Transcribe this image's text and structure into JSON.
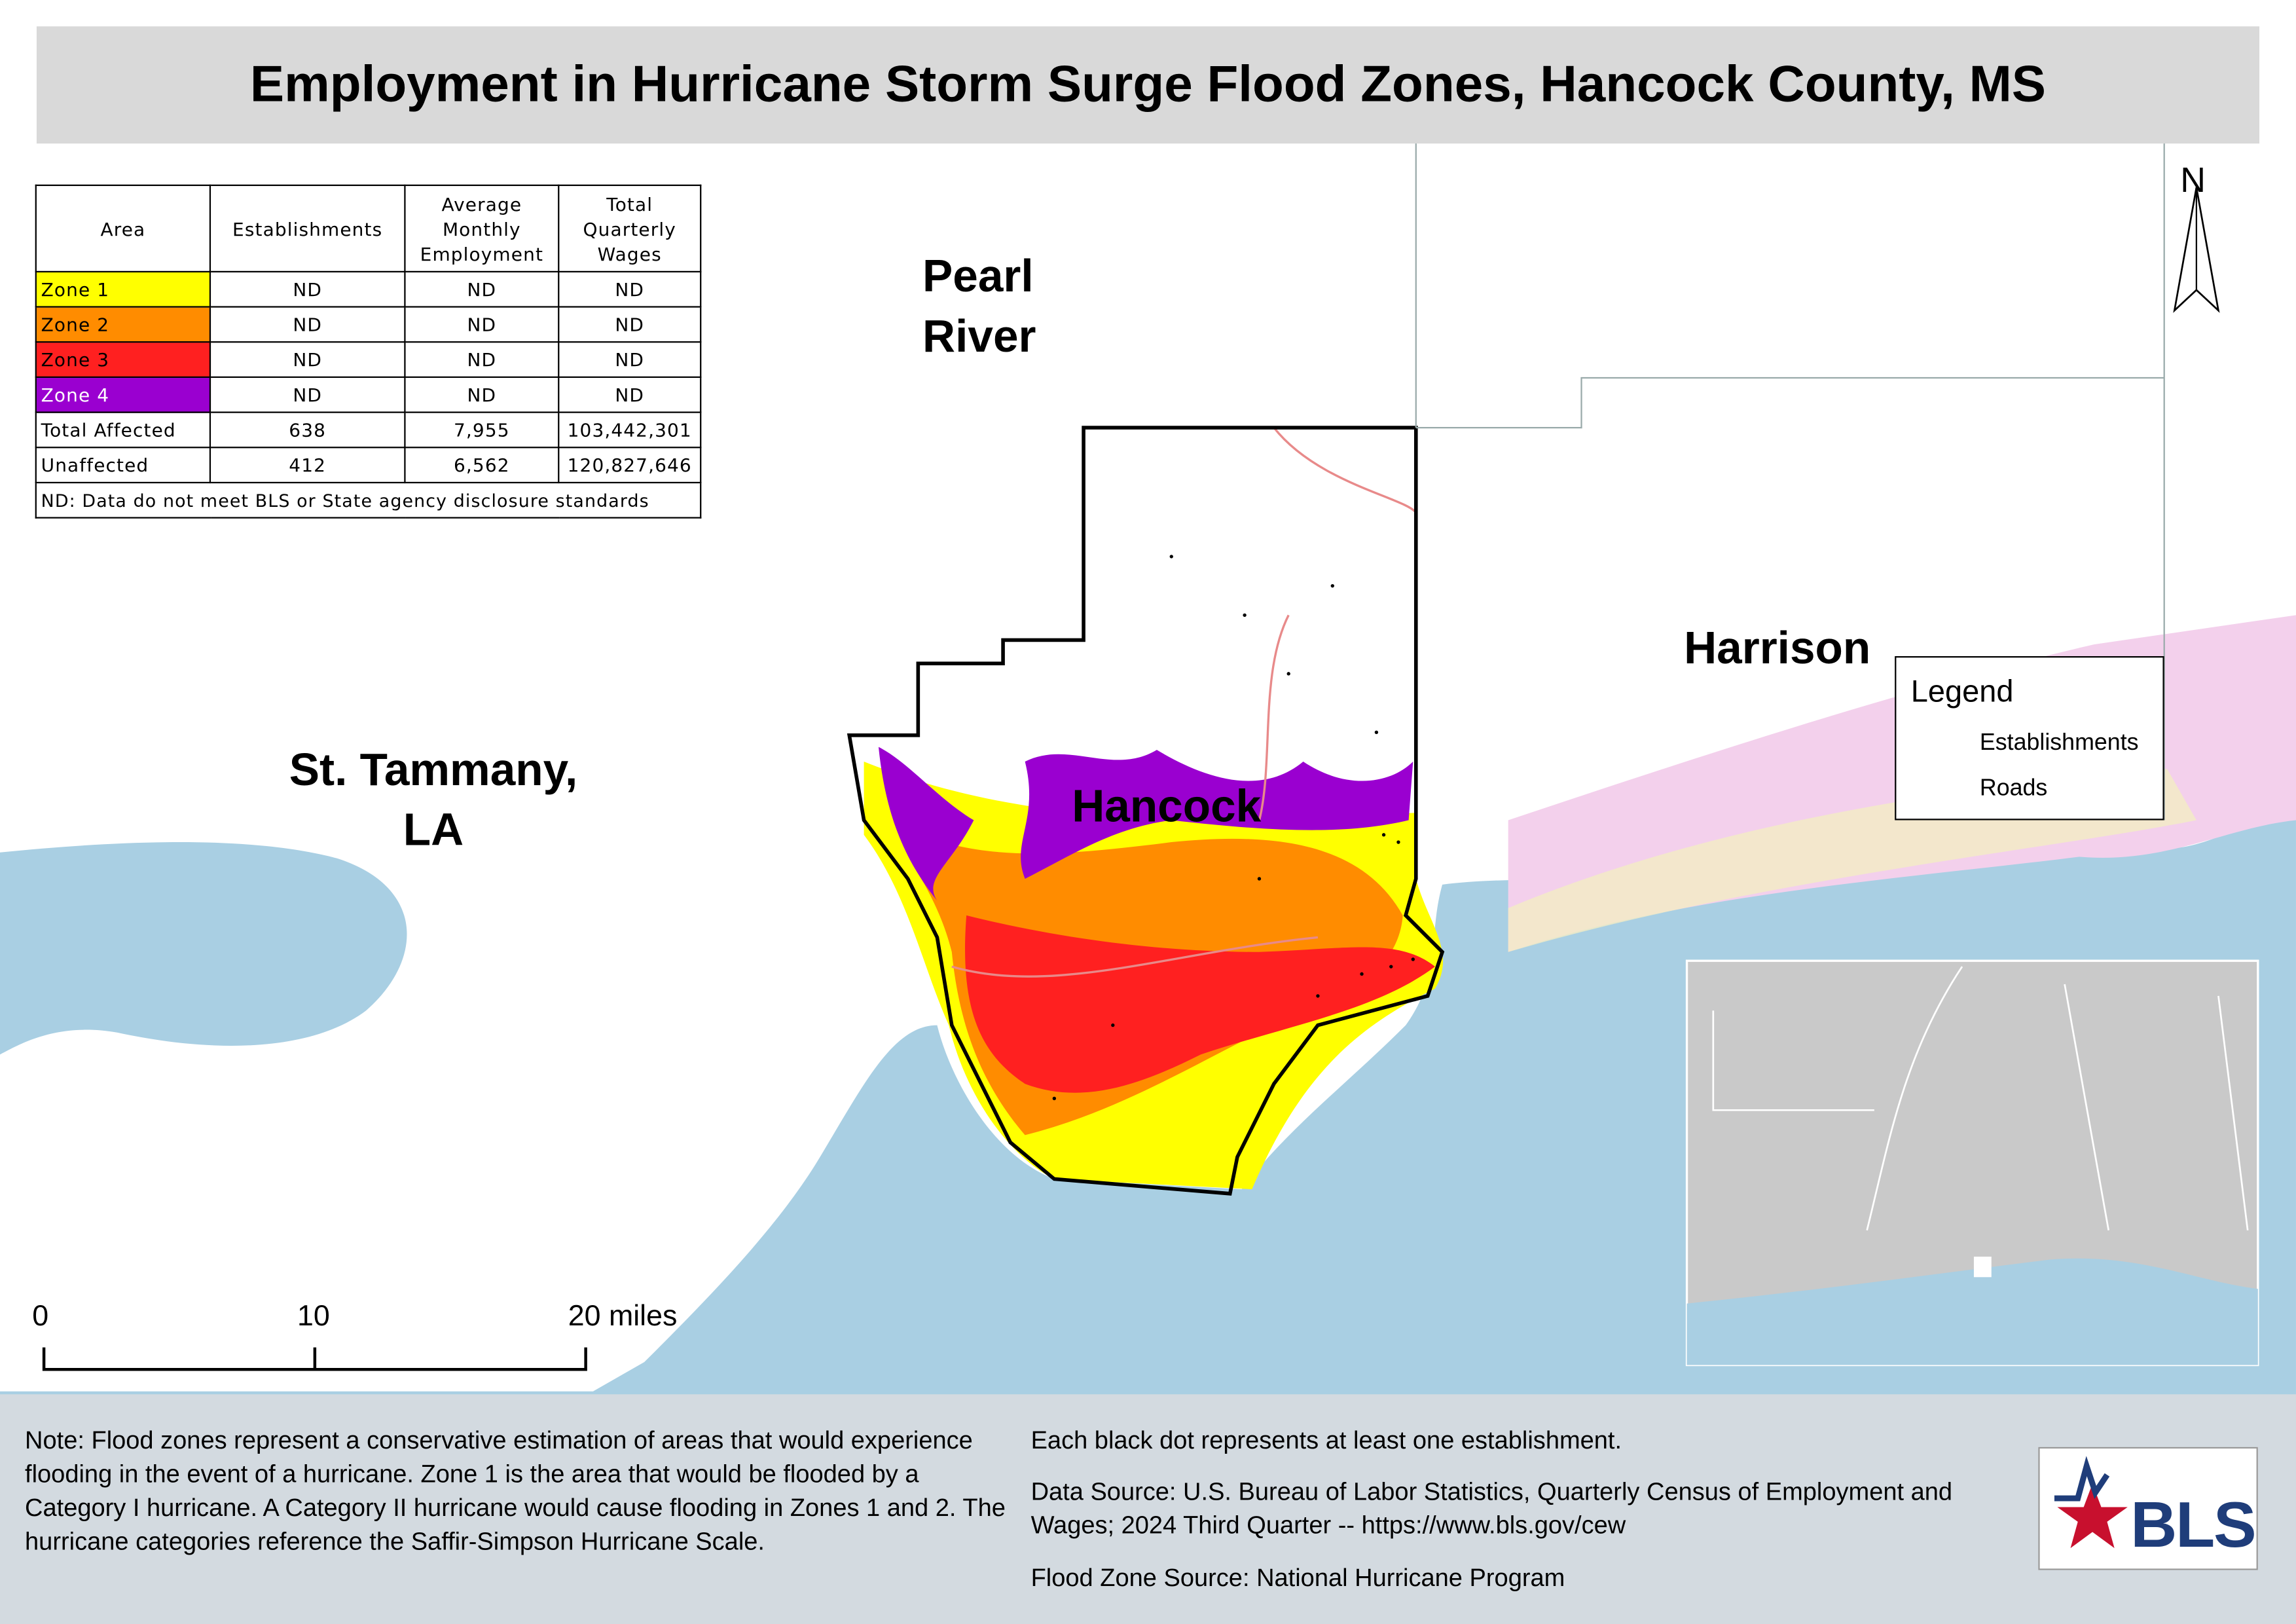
{
  "title": "Employment in Hurricane Storm Surge Flood Zones, Hancock County, MS",
  "table": {
    "header": [
      "Area",
      "Establishments",
      "Average Monthly Employment",
      "Total Quarterly Wages"
    ],
    "rows": [
      [
        "Zone 1",
        "ND",
        "ND",
        "ND"
      ],
      [
        "Zone 2",
        "ND",
        "ND",
        "ND"
      ],
      [
        "Zone 3",
        "ND",
        "ND",
        "ND"
      ],
      [
        "Zone 4",
        "ND",
        "ND",
        "ND"
      ],
      [
        "Total Affected",
        "638",
        "7,955",
        "103,442,301"
      ],
      [
        "Unaffected",
        "412",
        "6,562",
        "120,827,646"
      ]
    ],
    "footnote": "ND: Data do not meet BLS or State agency disclosure standards"
  },
  "map_labels": {
    "pearl_river": "Pearl River",
    "st_tammany": "St. Tammany, LA",
    "harrison": "Harrison",
    "hancock": "Hancock"
  },
  "north": "N",
  "legend": {
    "title": "Legend",
    "items": [
      "Establishments",
      "Roads"
    ]
  },
  "scale_bar": {
    "labels": [
      "0",
      "10",
      "20 miles"
    ]
  },
  "notes": {
    "left": "Note: Flood zones represent a conservative estimation of areas that would experience flooding in the event of a hurricane. Zone 1 is the area that would be flooded by a Category I hurricane. A Category II hurricane would cause flooding in Zones 1 and 2. The hurricane categories reference the Saffir-Simpson Hurricane Scale.",
    "right": [
      "Each black dot represents at least one establishment.",
      "Data Source: U.S. Bureau of Labor Statistics, Quarterly Census of Employment and Wages; 2024 Third Quarter -- https://www.bls.gov/cew",
      "Flood Zone Source: National Hurricane Program"
    ]
  },
  "logo": "BLS"
}
